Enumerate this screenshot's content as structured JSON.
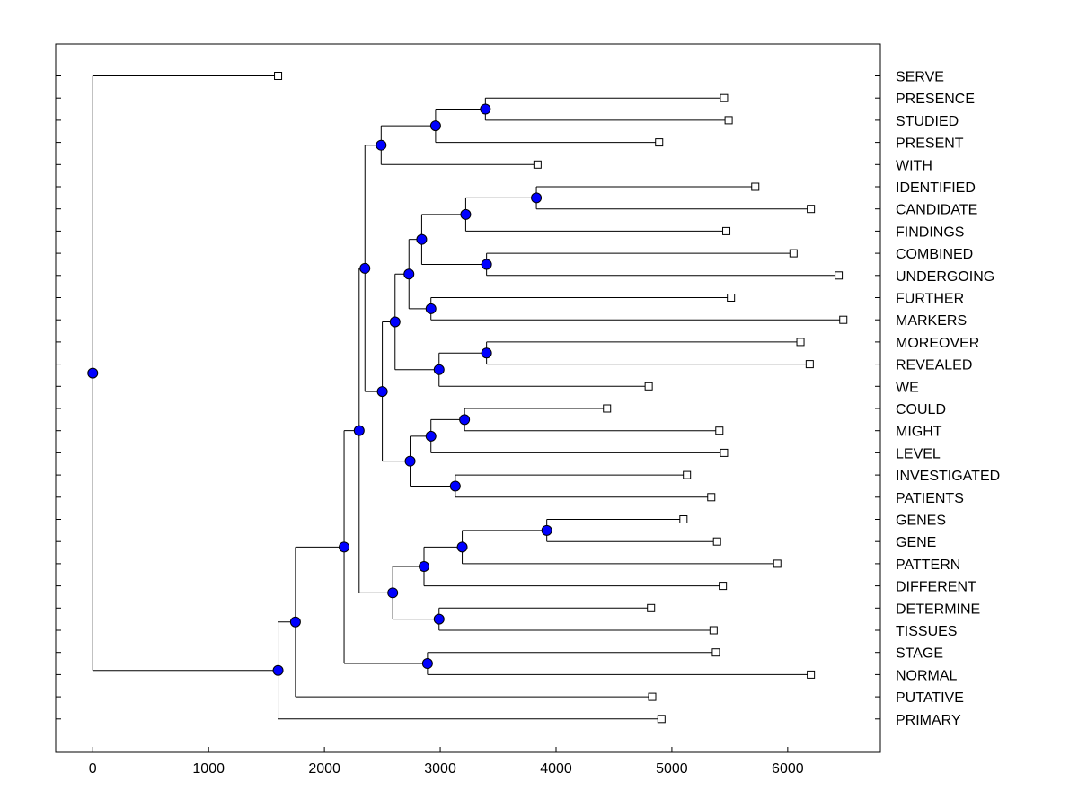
{
  "chart_data": {
    "type": "dendrogram",
    "orientation": "horizontal",
    "xlim": [
      -320,
      6800
    ],
    "xticks": [
      0,
      1000,
      2000,
      3000,
      4000,
      5000,
      6000
    ],
    "xtick_labels": [
      "0",
      "1000",
      "2000",
      "3000",
      "4000",
      "5000",
      "6000"
    ],
    "leaves": [
      {
        "label": "SERVE",
        "value": 1600
      },
      {
        "label": "PRESENCE",
        "value": 5450
      },
      {
        "label": "STUDIED",
        "value": 5490
      },
      {
        "label": "PRESENT",
        "value": 4890
      },
      {
        "label": "WITH",
        "value": 3840
      },
      {
        "label": "IDENTIFIED",
        "value": 5720
      },
      {
        "label": "CANDIDATE",
        "value": 6200
      },
      {
        "label": "FINDINGS",
        "value": 5470
      },
      {
        "label": "COMBINED",
        "value": 6050
      },
      {
        "label": "UNDERGOING",
        "value": 6440
      },
      {
        "label": "FURTHER",
        "value": 5510
      },
      {
        "label": "MARKERS",
        "value": 6480
      },
      {
        "label": "MOREOVER",
        "value": 6110
      },
      {
        "label": "REVEALED",
        "value": 6190
      },
      {
        "label": "WE",
        "value": 4800
      },
      {
        "label": "COULD",
        "value": 4440
      },
      {
        "label": "MIGHT",
        "value": 5410
      },
      {
        "label": "LEVEL",
        "value": 5450
      },
      {
        "label": "INVESTIGATED",
        "value": 5130
      },
      {
        "label": "PATIENTS",
        "value": 5340
      },
      {
        "label": "GENES",
        "value": 5100
      },
      {
        "label": "GENE",
        "value": 5390
      },
      {
        "label": "PATTERN",
        "value": 5910
      },
      {
        "label": "DIFFERENT",
        "value": 5440
      },
      {
        "label": "DETERMINE",
        "value": 4820
      },
      {
        "label": "TISSUES",
        "value": 5360
      },
      {
        "label": "STAGE",
        "value": 5380
      },
      {
        "label": "NORMAL",
        "value": 6200
      },
      {
        "label": "PUTATIVE",
        "value": 4830
      },
      {
        "label": "PRIMARY",
        "value": 4910
      }
    ],
    "merges": [
      {
        "id": "n1",
        "children": [
          "PRESENCE",
          "STUDIED"
        ],
        "value": 3390
      },
      {
        "id": "n2",
        "children": [
          "n1",
          "PRESENT"
        ],
        "value": 2960
      },
      {
        "id": "n3",
        "children": [
          "n2",
          "WITH"
        ],
        "value": 2490
      },
      {
        "id": "n4",
        "children": [
          "IDENTIFIED",
          "CANDIDATE"
        ],
        "value": 3830
      },
      {
        "id": "n5",
        "children": [
          "n4",
          "FINDINGS"
        ],
        "value": 3220
      },
      {
        "id": "n6",
        "children": [
          "COMBINED",
          "UNDERGOING"
        ],
        "value": 3400
      },
      {
        "id": "n7",
        "children": [
          "n5",
          "n6"
        ],
        "value": 2840
      },
      {
        "id": "n8",
        "children": [
          "FURTHER",
          "MARKERS"
        ],
        "value": 2920
      },
      {
        "id": "n9",
        "children": [
          "n7",
          "n8"
        ],
        "value": 2730
      },
      {
        "id": "n10",
        "children": [
          "MOREOVER",
          "REVEALED"
        ],
        "value": 3400
      },
      {
        "id": "n11",
        "children": [
          "n10",
          "WE"
        ],
        "value": 2990
      },
      {
        "id": "n12",
        "children": [
          "n9",
          "n11"
        ],
        "value": 2610
      },
      {
        "id": "n13",
        "children": [
          "COULD",
          "MIGHT"
        ],
        "value": 3210
      },
      {
        "id": "n14",
        "children": [
          "n13",
          "LEVEL"
        ],
        "value": 2920
      },
      {
        "id": "n15",
        "children": [
          "INVESTIGATED",
          "PATIENTS"
        ],
        "value": 3130
      },
      {
        "id": "n16",
        "children": [
          "n14",
          "n15"
        ],
        "value": 2740
      },
      {
        "id": "n17",
        "children": [
          "n12",
          "n16"
        ],
        "value": 2500
      },
      {
        "id": "n18",
        "children": [
          "n3",
          "n17"
        ],
        "value": 2350
      },
      {
        "id": "n19",
        "children": [
          "GENES",
          "GENE"
        ],
        "value": 3920
      },
      {
        "id": "n20",
        "children": [
          "n19",
          "PATTERN"
        ],
        "value": 3190
      },
      {
        "id": "n21",
        "children": [
          "n20",
          "DIFFERENT"
        ],
        "value": 2860
      },
      {
        "id": "n22",
        "children": [
          "DETERMINE",
          "TISSUES"
        ],
        "value": 2990
      },
      {
        "id": "n23",
        "children": [
          "n21",
          "n22"
        ],
        "value": 2590
      },
      {
        "id": "n24",
        "children": [
          "n18",
          "n23"
        ],
        "value": 2300
      },
      {
        "id": "n25",
        "children": [
          "STAGE",
          "NORMAL"
        ],
        "value": 2890
      },
      {
        "id": "n26",
        "children": [
          "n24",
          "n25"
        ],
        "value": 2170
      },
      {
        "id": "n27",
        "children": [
          "n26",
          "PUTATIVE"
        ],
        "value": 1750
      },
      {
        "id": "n28",
        "children": [
          "n27",
          "PRIMARY"
        ],
        "value": 1600
      },
      {
        "id": "n29",
        "children": [
          "SERVE",
          "n28"
        ],
        "value": 0
      }
    ]
  }
}
